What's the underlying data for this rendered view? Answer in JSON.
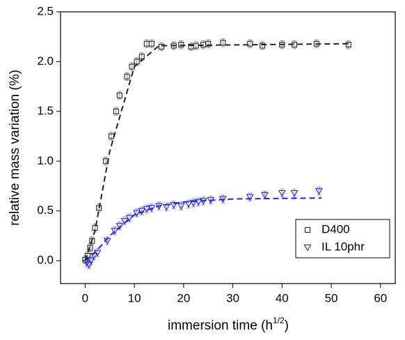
{
  "chart_data": {
    "type": "scatter",
    "xlabel": {
      "main": "immersion time (h",
      "sup": "1/2",
      "end": ")"
    },
    "ylabel": "relative mass variation (%)",
    "xlim": [
      -5,
      63
    ],
    "ylim": [
      -0.23,
      2.5
    ],
    "xticks": [
      0,
      10,
      20,
      30,
      40,
      50,
      60
    ],
    "yticks": [
      {
        "value": 0,
        "label": "0.0"
      },
      0.5,
      {
        "value": 1,
        "label": "1.0"
      },
      1.5,
      {
        "value": 2,
        "label": "2.0"
      },
      2.5
    ],
    "legend": "lower right",
    "series": [
      {
        "name": "D400",
        "color": "#222222",
        "marker": "square",
        "error": 0.04,
        "x": [
          0,
          0.5,
          1,
          1.4,
          2,
          2.8,
          4.2,
          5.3,
          6.3,
          7,
          8.5,
          9.5,
          10.5,
          11.5,
          12.5,
          13.5,
          15.5,
          18,
          19.5,
          21.5,
          22.5,
          24,
          25,
          28,
          33.5,
          36,
          40,
          42.5,
          47,
          53.5
        ],
        "values": [
          0.01,
          0.05,
          0.13,
          0.2,
          0.33,
          0.53,
          1.0,
          1.25,
          1.5,
          1.66,
          1.85,
          1.95,
          2.0,
          2.05,
          2.18,
          2.18,
          2.15,
          2.16,
          2.17,
          2.15,
          2.16,
          2.17,
          2.18,
          2.19,
          2.18,
          2.16,
          2.17,
          2.17,
          2.18,
          2.17
        ]
      },
      {
        "name": "IL 10phr",
        "color": "#2323d8",
        "marker": "triangle-down",
        "error": 0.04,
        "x": [
          0.3,
          0.8,
          1.2,
          1.8,
          2.5,
          4.5,
          6,
          7,
          8,
          9,
          10.5,
          11.5,
          12.5,
          13.5,
          15,
          16.5,
          18,
          19.5,
          21,
          22,
          23,
          24,
          25.5,
          28,
          33.5,
          36.5,
          40,
          42.5,
          47.5
        ],
        "values": [
          -0.02,
          -0.04,
          0.0,
          0.05,
          0.08,
          0.2,
          0.3,
          0.35,
          0.4,
          0.43,
          0.48,
          0.5,
          0.52,
          0.53,
          0.55,
          0.54,
          0.56,
          0.55,
          0.57,
          0.58,
          0.59,
          0.6,
          0.61,
          0.62,
          0.64,
          0.66,
          0.68,
          0.68,
          0.7
        ]
      }
    ],
    "fits": [
      {
        "color": "#222222",
        "x": [
          0,
          2,
          5,
          10,
          15,
          54
        ],
        "values": [
          0,
          0.3,
          1.1,
          1.95,
          2.16,
          2.18
        ]
      },
      {
        "color": "#2323d8",
        "x": [
          0,
          2,
          5,
          10,
          15,
          20,
          30,
          48
        ],
        "values": [
          0,
          0.08,
          0.25,
          0.46,
          0.55,
          0.59,
          0.62,
          0.63
        ]
      }
    ]
  }
}
